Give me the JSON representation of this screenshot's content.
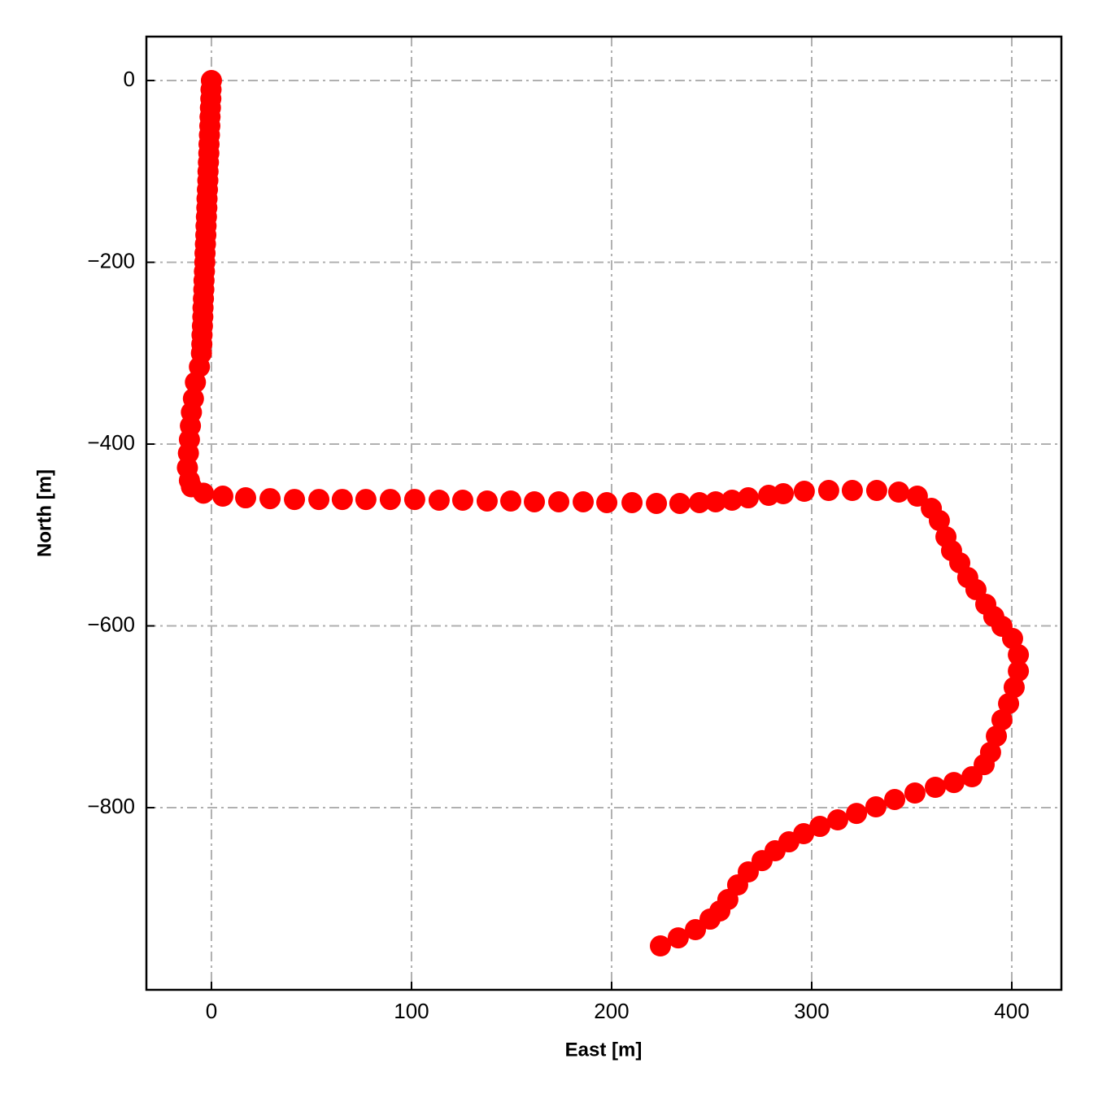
{
  "chart_data": {
    "type": "scatter",
    "x_label": "East [m]",
    "y_label": "North [m]",
    "color": "#ff0000",
    "grid": true,
    "xlim": [
      -32.5,
      424.8
    ],
    "ylim": [
      -1000.4,
      48.3
    ],
    "xticks": [
      0,
      100,
      200,
      300,
      400
    ],
    "yticks": [
      0,
      -200,
      -400,
      -600,
      -800
    ],
    "x": [
      0,
      -0.2,
      -0.3,
      -0.5,
      -0.7,
      -0.8,
      -1,
      -1.2,
      -1.3,
      -1.5,
      -1.7,
      -1.8,
      -2,
      -2.2,
      -2.3,
      -2.5,
      -2.7,
      -2.8,
      -3,
      -3.2,
      -3.3,
      -3.5,
      -3.7,
      -3.8,
      -4,
      -4.2,
      -4.3,
      -4.5,
      -4.7,
      -4.8,
      -5,
      -6,
      -8,
      -9,
      -10,
      -10.5,
      -11,
      -11.5,
      -12,
      -11,
      -10,
      -4,
      5.7,
      17.1,
      29.3,
      41.5,
      53.7,
      65.4,
      77.2,
      89.4,
      101.6,
      113.8,
      125.6,
      137.8,
      149.6,
      161.4,
      173.6,
      185.8,
      197.6,
      210.2,
      222.4,
      234.1,
      243.9,
      252,
      260.2,
      268.3,
      278.5,
      285.8,
      296.3,
      308.5,
      320.3,
      332.5,
      343.5,
      352.8,
      359.8,
      363.8,
      367.1,
      369.9,
      374,
      378,
      382.1,
      387,
      391,
      395.1,
      400.4,
      403.3,
      403.3,
      401.2,
      398.4,
      395.1,
      392.3,
      389.4,
      386.2,
      380.1,
      371.1,
      361.8,
      351.6,
      341.5,
      332.1,
      322.4,
      313,
      304.1,
      296,
      288.6,
      281.7,
      275.2,
      268.3,
      263,
      258.1,
      254.1,
      249.2,
      241.9,
      233.3,
      224.4
    ],
    "values": [
      0,
      -10,
      -20,
      -30,
      -40,
      -50,
      -60,
      -70,
      -80,
      -90,
      -100,
      -110,
      -120,
      -130,
      -140,
      -150,
      -160,
      -170,
      -180,
      -190,
      -200,
      -210,
      -220,
      -230,
      -240,
      -250,
      -260,
      -270,
      -280,
      -290,
      -300,
      -315,
      -332,
      -350,
      -365,
      -380,
      -395,
      -410,
      -426,
      -440,
      -447,
      -454,
      -457.3,
      -459.1,
      -460,
      -460.9,
      -460.9,
      -460.9,
      -460.9,
      -460.9,
      -460.9,
      -461.7,
      -461.7,
      -462.6,
      -462.6,
      -463.5,
      -463.5,
      -463.5,
      -464.4,
      -464.4,
      -465.3,
      -465.3,
      -464.4,
      -463.5,
      -461.7,
      -459.1,
      -456.4,
      -454.6,
      -451.9,
      -451,
      -451,
      -451,
      -452.8,
      -457.3,
      -470.7,
      -484.1,
      -502,
      -517.2,
      -530.6,
      -546.8,
      -560.1,
      -576.3,
      -589.7,
      -600.4,
      -613.9,
      -631.8,
      -649.7,
      -667.6,
      -685.5,
      -703.4,
      -721.3,
      -739.1,
      -752.6,
      -766,
      -772.3,
      -777.6,
      -783.9,
      -791,
      -799.1,
      -806.3,
      -813.4,
      -820.6,
      -828.6,
      -837.6,
      -847.4,
      -858.2,
      -870.7,
      -885,
      -901.1,
      -913.6,
      -922.6,
      -934.2,
      -943.2,
      -952.1
    ]
  }
}
